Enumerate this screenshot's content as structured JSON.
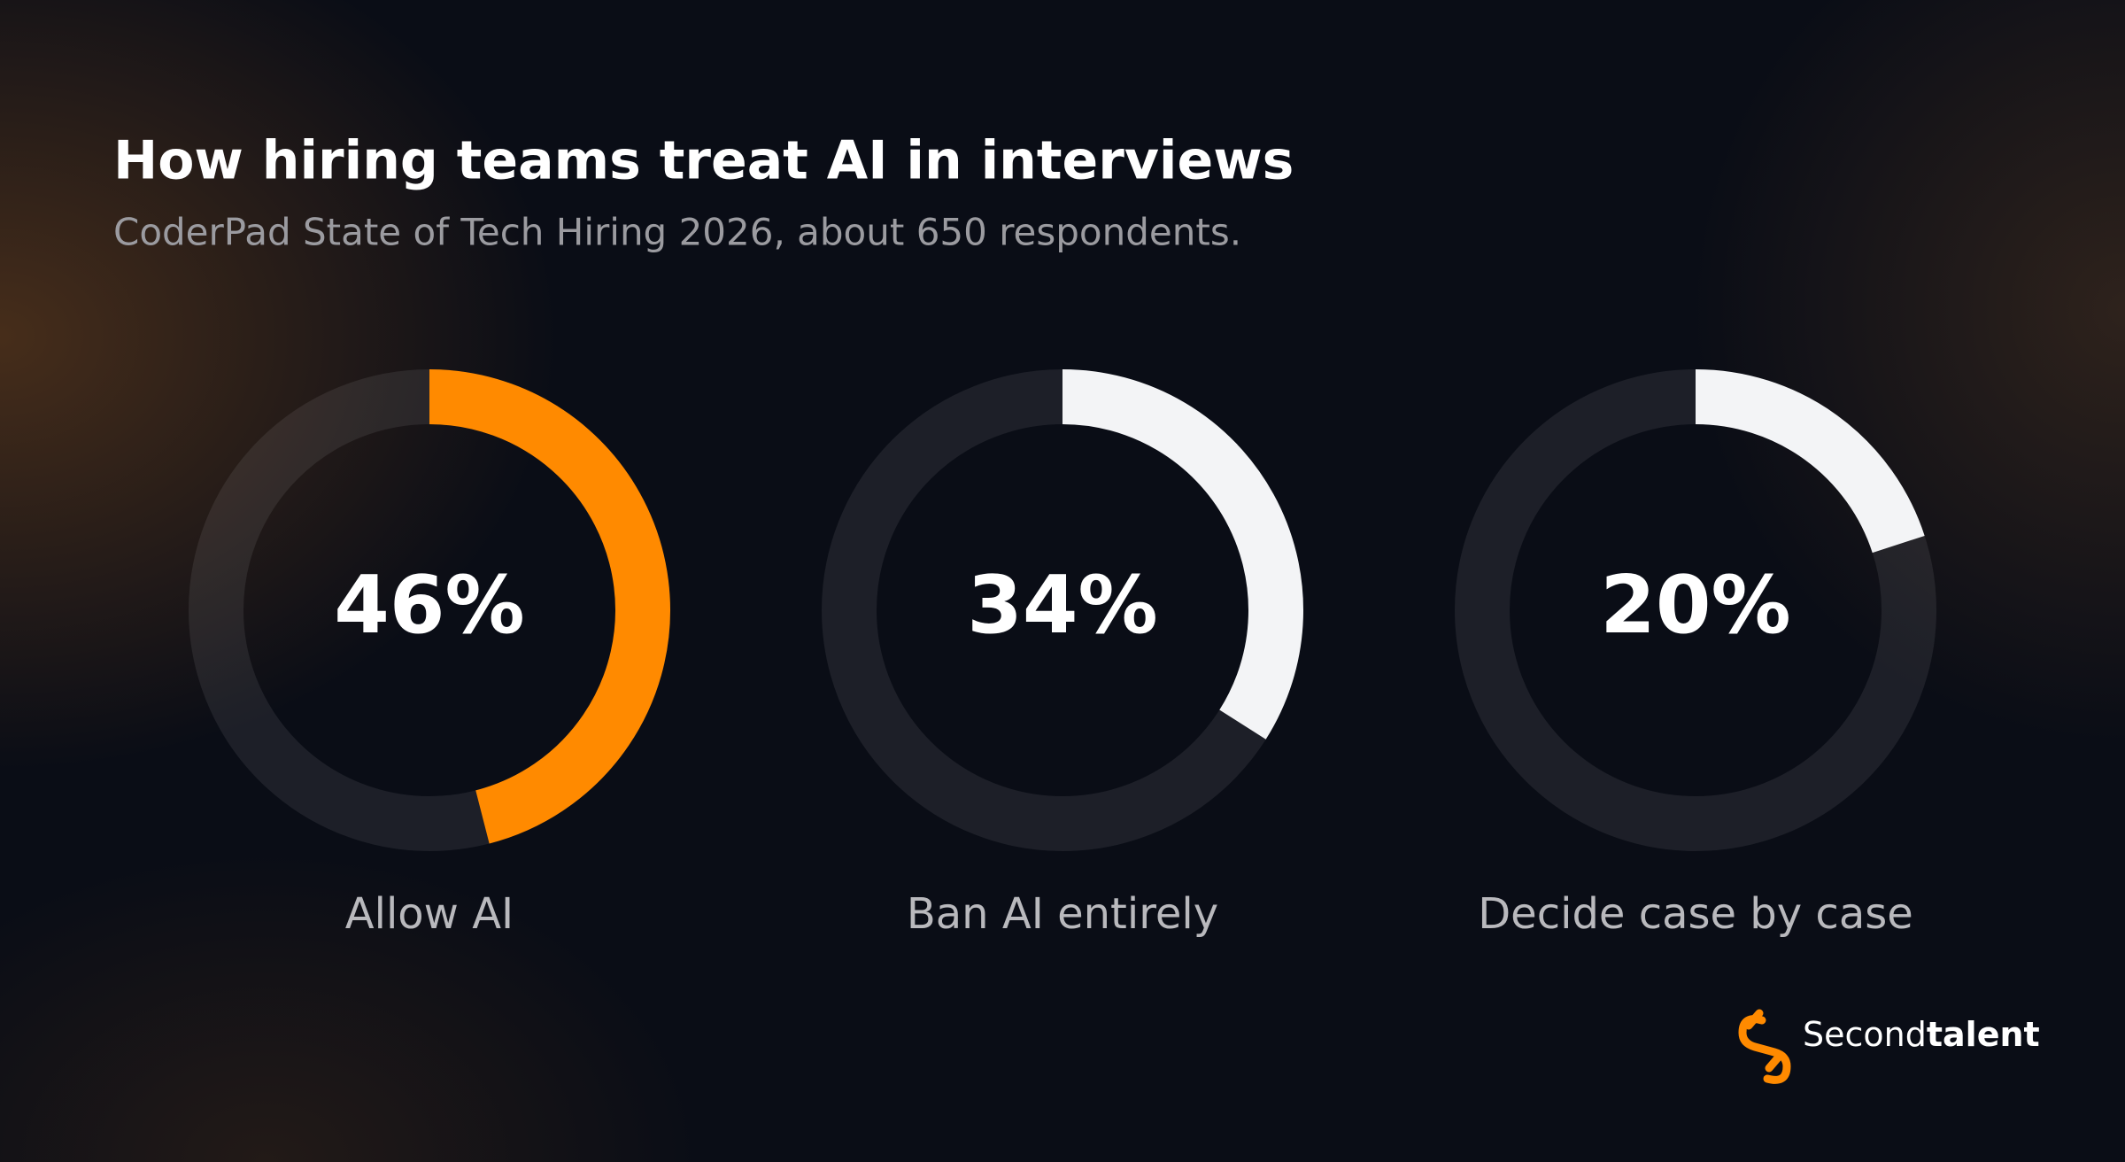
{
  "chart_data": {
    "type": "donut",
    "title": "How hiring teams treat AI in interviews",
    "subtitle": "CoderPad State of Tech Hiring 2026, about 650 respondents.",
    "categories": [
      "Allow AI",
      "Ban AI entirely",
      "Decide case by case"
    ],
    "values": [
      46,
      34,
      20
    ],
    "value_labels": [
      "46%",
      "34%",
      "20%"
    ],
    "colors": [
      "#ff8a00",
      "#f3f4f6",
      "#f3f4f6"
    ]
  },
  "logo": {
    "regular": "Second",
    "bold": "talent"
  }
}
